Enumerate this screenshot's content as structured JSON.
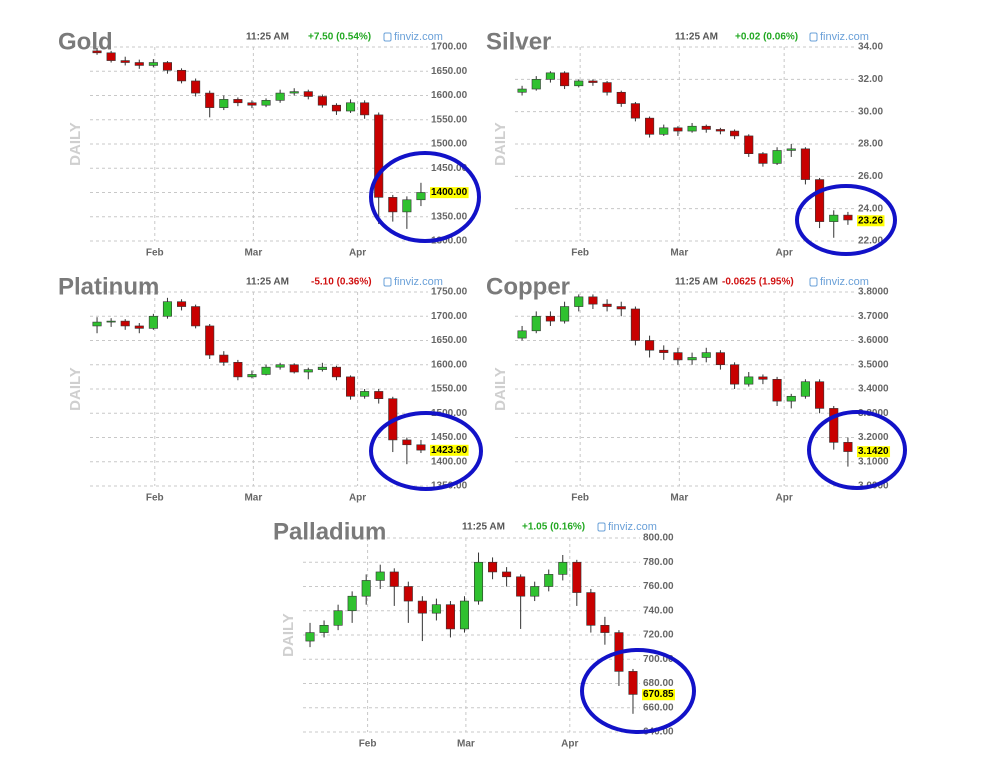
{
  "chart_data": [
    {
      "type": "candlestick",
      "title": "Gold",
      "y_axis_label": "DAILY",
      "time": "11:25 AM",
      "change": "+7.50 (0.54%)",
      "change_color": "#22a822",
      "source": "finviz.com",
      "up_color": "#2fc12f",
      "down_color": "#c80000",
      "grid": true,
      "xlim": [
        0,
        24
      ],
      "xticks": [
        {
          "value": 4.6,
          "label": "Feb"
        },
        {
          "value": 11.6,
          "label": "Mar"
        },
        {
          "value": 19.0,
          "label": "Apr"
        }
      ],
      "ylim": [
        1300,
        1700
      ],
      "yticks": [
        {
          "value": 1300,
          "label": "1300.00"
        },
        {
          "value": 1350,
          "label": "1350.00"
        },
        {
          "value": 1400,
          "label": "1400.00"
        },
        {
          "value": 1450,
          "label": "1450.00"
        },
        {
          "value": 1500,
          "label": "1500.00"
        },
        {
          "value": 1550,
          "label": "1550.00"
        },
        {
          "value": 1600,
          "label": "1600.00"
        },
        {
          "value": 1650,
          "label": "1650.00"
        },
        {
          "value": 1700,
          "label": "1700.00"
        }
      ],
      "last_price": {
        "value": 1400,
        "label": "1400.00"
      },
      "candles": [
        [
          1692,
          1698,
          1684,
          1688
        ],
        [
          1688,
          1692,
          1668,
          1672
        ],
        [
          1672,
          1680,
          1662,
          1668
        ],
        [
          1668,
          1674,
          1655,
          1662
        ],
        [
          1662,
          1675,
          1658,
          1668
        ],
        [
          1668,
          1671,
          1645,
          1652
        ],
        [
          1652,
          1656,
          1625,
          1630
        ],
        [
          1630,
          1635,
          1598,
          1605
        ],
        [
          1605,
          1610,
          1555,
          1575
        ],
        [
          1575,
          1600,
          1570,
          1592
        ],
        [
          1592,
          1596,
          1578,
          1585
        ],
        [
          1585,
          1590,
          1574,
          1580
        ],
        [
          1580,
          1594,
          1576,
          1590
        ],
        [
          1590,
          1612,
          1585,
          1605
        ],
        [
          1605,
          1615,
          1600,
          1608
        ],
        [
          1608,
          1612,
          1592,
          1598
        ],
        [
          1598,
          1602,
          1575,
          1580
        ],
        [
          1580,
          1584,
          1560,
          1568
        ],
        [
          1568,
          1592,
          1564,
          1585
        ],
        [
          1585,
          1590,
          1552,
          1560
        ],
        [
          1560,
          1565,
          1335,
          1390
        ],
        [
          1390,
          1395,
          1340,
          1360
        ],
        [
          1360,
          1392,
          1325,
          1385
        ],
        [
          1385,
          1420,
          1372,
          1400
        ]
      ]
    },
    {
      "type": "candlestick",
      "title": "Silver",
      "y_axis_label": "DAILY",
      "time": "11:25 AM",
      "change": "+0.02 (0.06%)",
      "change_color": "#22a822",
      "source": "finviz.com",
      "up_color": "#2fc12f",
      "down_color": "#c80000",
      "grid": true,
      "xlim": [
        0,
        24
      ],
      "xticks": [
        {
          "value": 4.6,
          "label": "Feb"
        },
        {
          "value": 11.6,
          "label": "Mar"
        },
        {
          "value": 19.0,
          "label": "Apr"
        }
      ],
      "ylim": [
        22,
        34
      ],
      "yticks": [
        {
          "value": 22,
          "label": "22.00"
        },
        {
          "value": 24,
          "label": "24.00"
        },
        {
          "value": 26,
          "label": "26.00"
        },
        {
          "value": 28,
          "label": "28.00"
        },
        {
          "value": 30,
          "label": "30.00"
        },
        {
          "value": 32,
          "label": "32.00"
        },
        {
          "value": 34,
          "label": "34.00"
        }
      ],
      "last_price": {
        "value": 23.26,
        "label": "23.26"
      },
      "candles": [
        [
          31.2,
          31.6,
          31.0,
          31.4
        ],
        [
          31.4,
          32.2,
          31.3,
          32.0
        ],
        [
          32.0,
          32.5,
          31.8,
          32.4
        ],
        [
          32.4,
          32.5,
          31.4,
          31.6
        ],
        [
          31.6,
          32.0,
          31.5,
          31.9
        ],
        [
          31.9,
          32.0,
          31.6,
          31.8
        ],
        [
          31.8,
          31.9,
          31.0,
          31.2
        ],
        [
          31.2,
          31.3,
          30.3,
          30.5
        ],
        [
          30.5,
          30.6,
          29.4,
          29.6
        ],
        [
          29.6,
          29.7,
          28.4,
          28.6
        ],
        [
          28.6,
          29.2,
          28.5,
          29.0
        ],
        [
          29.0,
          29.1,
          28.5,
          28.8
        ],
        [
          28.8,
          29.3,
          28.7,
          29.1
        ],
        [
          29.1,
          29.2,
          28.7,
          28.9
        ],
        [
          28.9,
          29.0,
          28.6,
          28.8
        ],
        [
          28.8,
          28.9,
          28.3,
          28.5
        ],
        [
          28.5,
          28.6,
          27.2,
          27.4
        ],
        [
          27.4,
          27.5,
          26.6,
          26.8
        ],
        [
          26.8,
          27.8,
          26.7,
          27.6
        ],
        [
          27.6,
          28.0,
          27.2,
          27.7
        ],
        [
          27.7,
          27.8,
          25.5,
          25.8
        ],
        [
          25.8,
          25.9,
          22.8,
          23.2
        ],
        [
          23.2,
          23.9,
          22.2,
          23.6
        ],
        [
          23.6,
          23.8,
          23.0,
          23.3
        ]
      ]
    },
    {
      "type": "candlestick",
      "title": "Platinum",
      "y_axis_label": "DAILY",
      "time": "11:25 AM",
      "change": "-5.10 (0.36%)",
      "change_color": "#d01010",
      "source": "finviz.com",
      "up_color": "#2fc12f",
      "down_color": "#c80000",
      "grid": true,
      "xlim": [
        0,
        24
      ],
      "xticks": [
        {
          "value": 4.6,
          "label": "Feb"
        },
        {
          "value": 11.6,
          "label": "Mar"
        },
        {
          "value": 19.0,
          "label": "Apr"
        }
      ],
      "ylim": [
        1350,
        1750
      ],
      "yticks": [
        {
          "value": 1350,
          "label": "1350.00"
        },
        {
          "value": 1400,
          "label": "1400.00"
        },
        {
          "value": 1450,
          "label": "1450.00"
        },
        {
          "value": 1500,
          "label": "1500.00"
        },
        {
          "value": 1550,
          "label": "1550.00"
        },
        {
          "value": 1600,
          "label": "1600.00"
        },
        {
          "value": 1650,
          "label": "1650.00"
        },
        {
          "value": 1700,
          "label": "1700.00"
        },
        {
          "value": 1750,
          "label": "1750.00"
        }
      ],
      "last_price": {
        "value": 1423.9,
        "label": "1423.90"
      },
      "candles": [
        [
          1680,
          1698,
          1665,
          1688
        ],
        [
          1688,
          1696,
          1678,
          1690
        ],
        [
          1690,
          1694,
          1672,
          1680
        ],
        [
          1680,
          1686,
          1665,
          1675
        ],
        [
          1675,
          1705,
          1672,
          1700
        ],
        [
          1700,
          1738,
          1695,
          1730
        ],
        [
          1730,
          1735,
          1712,
          1720
        ],
        [
          1720,
          1724,
          1675,
          1680
        ],
        [
          1680,
          1684,
          1612,
          1620
        ],
        [
          1620,
          1628,
          1598,
          1605
        ],
        [
          1605,
          1610,
          1568,
          1575
        ],
        [
          1575,
          1588,
          1572,
          1580
        ],
        [
          1580,
          1600,
          1578,
          1595
        ],
        [
          1595,
          1604,
          1590,
          1600
        ],
        [
          1600,
          1603,
          1582,
          1585
        ],
        [
          1585,
          1594,
          1570,
          1590
        ],
        [
          1590,
          1604,
          1586,
          1595
        ],
        [
          1595,
          1598,
          1568,
          1575
        ],
        [
          1575,
          1578,
          1528,
          1535
        ],
        [
          1535,
          1550,
          1530,
          1545
        ],
        [
          1545,
          1550,
          1520,
          1530
        ],
        [
          1530,
          1534,
          1420,
          1445
        ],
        [
          1445,
          1450,
          1395,
          1435
        ],
        [
          1435,
          1445,
          1418,
          1424
        ]
      ]
    },
    {
      "type": "candlestick",
      "title": "Copper",
      "y_axis_label": "DAILY",
      "time": "11:25 AM",
      "change": "-0.0625 (1.95%)",
      "change_color": "#d01010",
      "source": "finviz.com",
      "up_color": "#2fc12f",
      "down_color": "#c80000",
      "grid": true,
      "xlim": [
        0,
        24
      ],
      "xticks": [
        {
          "value": 4.6,
          "label": "Feb"
        },
        {
          "value": 11.6,
          "label": "Mar"
        },
        {
          "value": 19.0,
          "label": "Apr"
        }
      ],
      "ylim": [
        3.0,
        3.8
      ],
      "yticks": [
        {
          "value": 3.0,
          "label": "3.0000"
        },
        {
          "value": 3.1,
          "label": "3.1000"
        },
        {
          "value": 3.2,
          "label": "3.2000"
        },
        {
          "value": 3.3,
          "label": "3.3000"
        },
        {
          "value": 3.4,
          "label": "3.4000"
        },
        {
          "value": 3.5,
          "label": "3.5000"
        },
        {
          "value": 3.6,
          "label": "3.6000"
        },
        {
          "value": 3.7,
          "label": "3.7000"
        },
        {
          "value": 3.8,
          "label": "3.8000"
        }
      ],
      "last_price": {
        "value": 3.142,
        "label": "3.1420"
      },
      "candles": [
        [
          3.61,
          3.66,
          3.6,
          3.64
        ],
        [
          3.64,
          3.72,
          3.63,
          3.7
        ],
        [
          3.7,
          3.72,
          3.66,
          3.68
        ],
        [
          3.68,
          3.76,
          3.67,
          3.74
        ],
        [
          3.74,
          3.79,
          3.72,
          3.78
        ],
        [
          3.78,
          3.79,
          3.73,
          3.75
        ],
        [
          3.75,
          3.77,
          3.72,
          3.74
        ],
        [
          3.74,
          3.76,
          3.7,
          3.73
        ],
        [
          3.73,
          3.74,
          3.58,
          3.6
        ],
        [
          3.6,
          3.62,
          3.53,
          3.56
        ],
        [
          3.56,
          3.58,
          3.52,
          3.55
        ],
        [
          3.55,
          3.57,
          3.5,
          3.52
        ],
        [
          3.52,
          3.55,
          3.5,
          3.53
        ],
        [
          3.53,
          3.57,
          3.51,
          3.55
        ],
        [
          3.55,
          3.56,
          3.48,
          3.5
        ],
        [
          3.5,
          3.51,
          3.4,
          3.42
        ],
        [
          3.42,
          3.47,
          3.41,
          3.45
        ],
        [
          3.45,
          3.46,
          3.42,
          3.44
        ],
        [
          3.44,
          3.45,
          3.33,
          3.35
        ],
        [
          3.35,
          3.38,
          3.32,
          3.37
        ],
        [
          3.37,
          3.44,
          3.36,
          3.43
        ],
        [
          3.43,
          3.44,
          3.3,
          3.32
        ],
        [
          3.32,
          3.33,
          3.15,
          3.18
        ],
        [
          3.18,
          3.2,
          3.08,
          3.142
        ]
      ]
    },
    {
      "type": "candlestick",
      "title": "Palladium",
      "y_axis_label": "DAILY",
      "time": "11:25 AM",
      "change": "+1.05 (0.16%)",
      "change_color": "#22a822",
      "source": "finviz.com",
      "up_color": "#2fc12f",
      "down_color": "#c80000",
      "grid": true,
      "xlim": [
        0,
        24
      ],
      "xticks": [
        {
          "value": 4.6,
          "label": "Feb"
        },
        {
          "value": 11.6,
          "label": "Mar"
        },
        {
          "value": 19.0,
          "label": "Apr"
        }
      ],
      "ylim": [
        640,
        800
      ],
      "yticks": [
        {
          "value": 640,
          "label": "640.00"
        },
        {
          "value": 660,
          "label": "660.00"
        },
        {
          "value": 680,
          "label": "680.00"
        },
        {
          "value": 700,
          "label": "700.00"
        },
        {
          "value": 720,
          "label": "720.00"
        },
        {
          "value": 740,
          "label": "740.00"
        },
        {
          "value": 760,
          "label": "760.00"
        },
        {
          "value": 780,
          "label": "780.00"
        },
        {
          "value": 800,
          "label": "800.00"
        }
      ],
      "last_price": {
        "value": 670.85,
        "label": "670.85"
      },
      "candles": [
        [
          715,
          730,
          710,
          722
        ],
        [
          722,
          732,
          718,
          728
        ],
        [
          728,
          745,
          724,
          740
        ],
        [
          740,
          756,
          730,
          752
        ],
        [
          752,
          770,
          745,
          765
        ],
        [
          765,
          778,
          758,
          772
        ],
        [
          772,
          775,
          744,
          760
        ],
        [
          760,
          764,
          730,
          748
        ],
        [
          748,
          752,
          715,
          738
        ],
        [
          738,
          750,
          732,
          745
        ],
        [
          745,
          748,
          718,
          725
        ],
        [
          725,
          752,
          722,
          748
        ],
        [
          748,
          788,
          745,
          780
        ],
        [
          780,
          784,
          766,
          772
        ],
        [
          772,
          776,
          760,
          768
        ],
        [
          768,
          770,
          725,
          752
        ],
        [
          752,
          764,
          748,
          760
        ],
        [
          760,
          774,
          756,
          770
        ],
        [
          770,
          786,
          765,
          780
        ],
        [
          780,
          782,
          744,
          755
        ],
        [
          755,
          758,
          722,
          728
        ],
        [
          728,
          735,
          712,
          722
        ],
        [
          722,
          724,
          678,
          690
        ],
        [
          690,
          692,
          655,
          671
        ]
      ]
    }
  ]
}
